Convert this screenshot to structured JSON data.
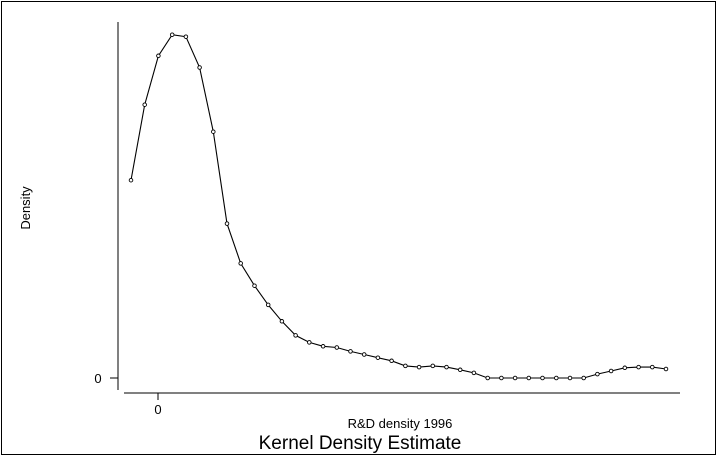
{
  "chart_data": {
    "type": "line",
    "title": "Kernel Density Estimate",
    "xlabel": "R&D density 1996",
    "ylabel": "Density",
    "x_ticks": [
      "0"
    ],
    "y_ticks": [
      "0"
    ],
    "markers": "hollow-circle",
    "series": [
      {
        "values": [
          0.506,
          0.699,
          0.824,
          0.878,
          0.873,
          0.794,
          0.63,
          0.395,
          0.293,
          0.236,
          0.187,
          0.145,
          0.109,
          0.091,
          0.081,
          0.078,
          0.068,
          0.06,
          0.052,
          0.044,
          0.031,
          0.028,
          0.031,
          0.028,
          0.021,
          0.013,
          0.0,
          0.0,
          0.0,
          0.0,
          0.0,
          0.0,
          0.0,
          0.0,
          0.01,
          0.018,
          0.026,
          0.028,
          0.028,
          0.023
        ]
      }
    ]
  }
}
